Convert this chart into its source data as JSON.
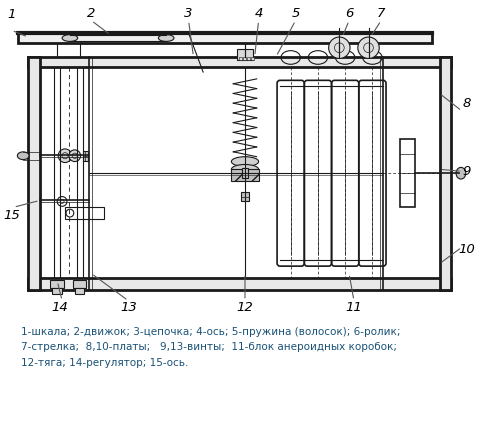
{
  "caption_line1": "1-шкала; 2-движок; 3-цепочка; 4-ось; 5-пружина (волосок); 6-ролик;",
  "caption_line2": "7-стрелка;  8,10-платы;   9,13-винты;  11-блок анероидных коробок;",
  "caption_line3": "12-тяга; 14-регулятор; 15-ось.",
  "caption_color": "#1a5276",
  "bg_color": "#ffffff",
  "fig_width": 5.0,
  "fig_height": 4.22,
  "dpi": 100
}
